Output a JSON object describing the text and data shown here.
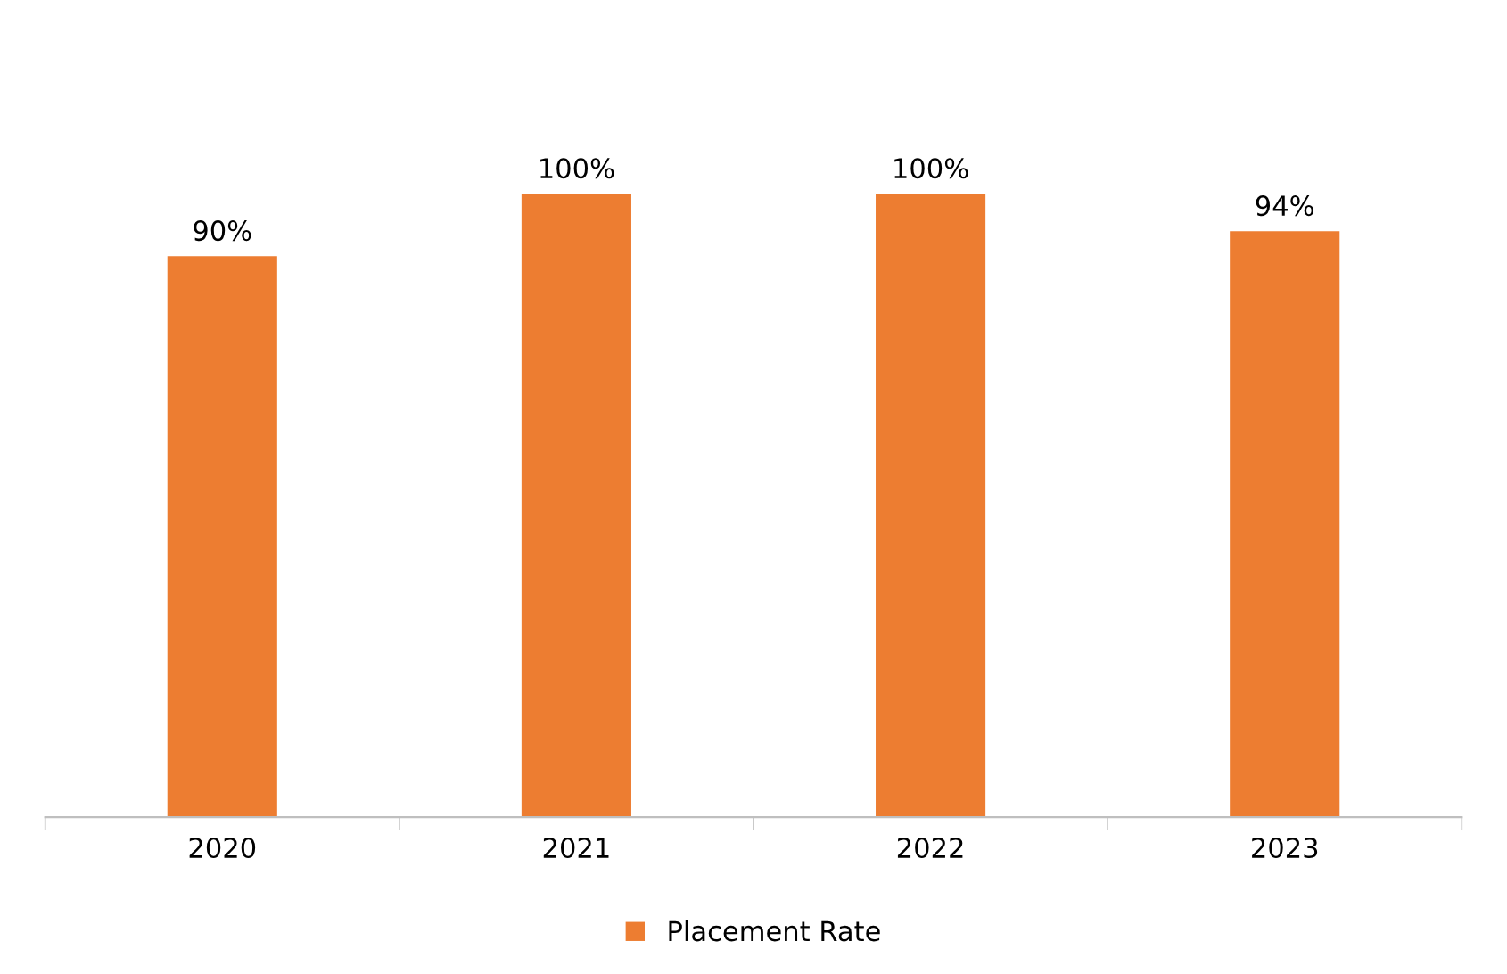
{
  "chart_data": {
    "type": "bar",
    "categories": [
      "2020",
      "2021",
      "2022",
      "2023"
    ],
    "series": [
      {
        "name": "Placement Rate",
        "color": "#ed7d31",
        "values": [
          90,
          100,
          100,
          94
        ],
        "value_labels": [
          "90%",
          "100%",
          "100%",
          "94%"
        ]
      }
    ],
    "tick_labels": "x",
    "legend": "bottom"
  }
}
